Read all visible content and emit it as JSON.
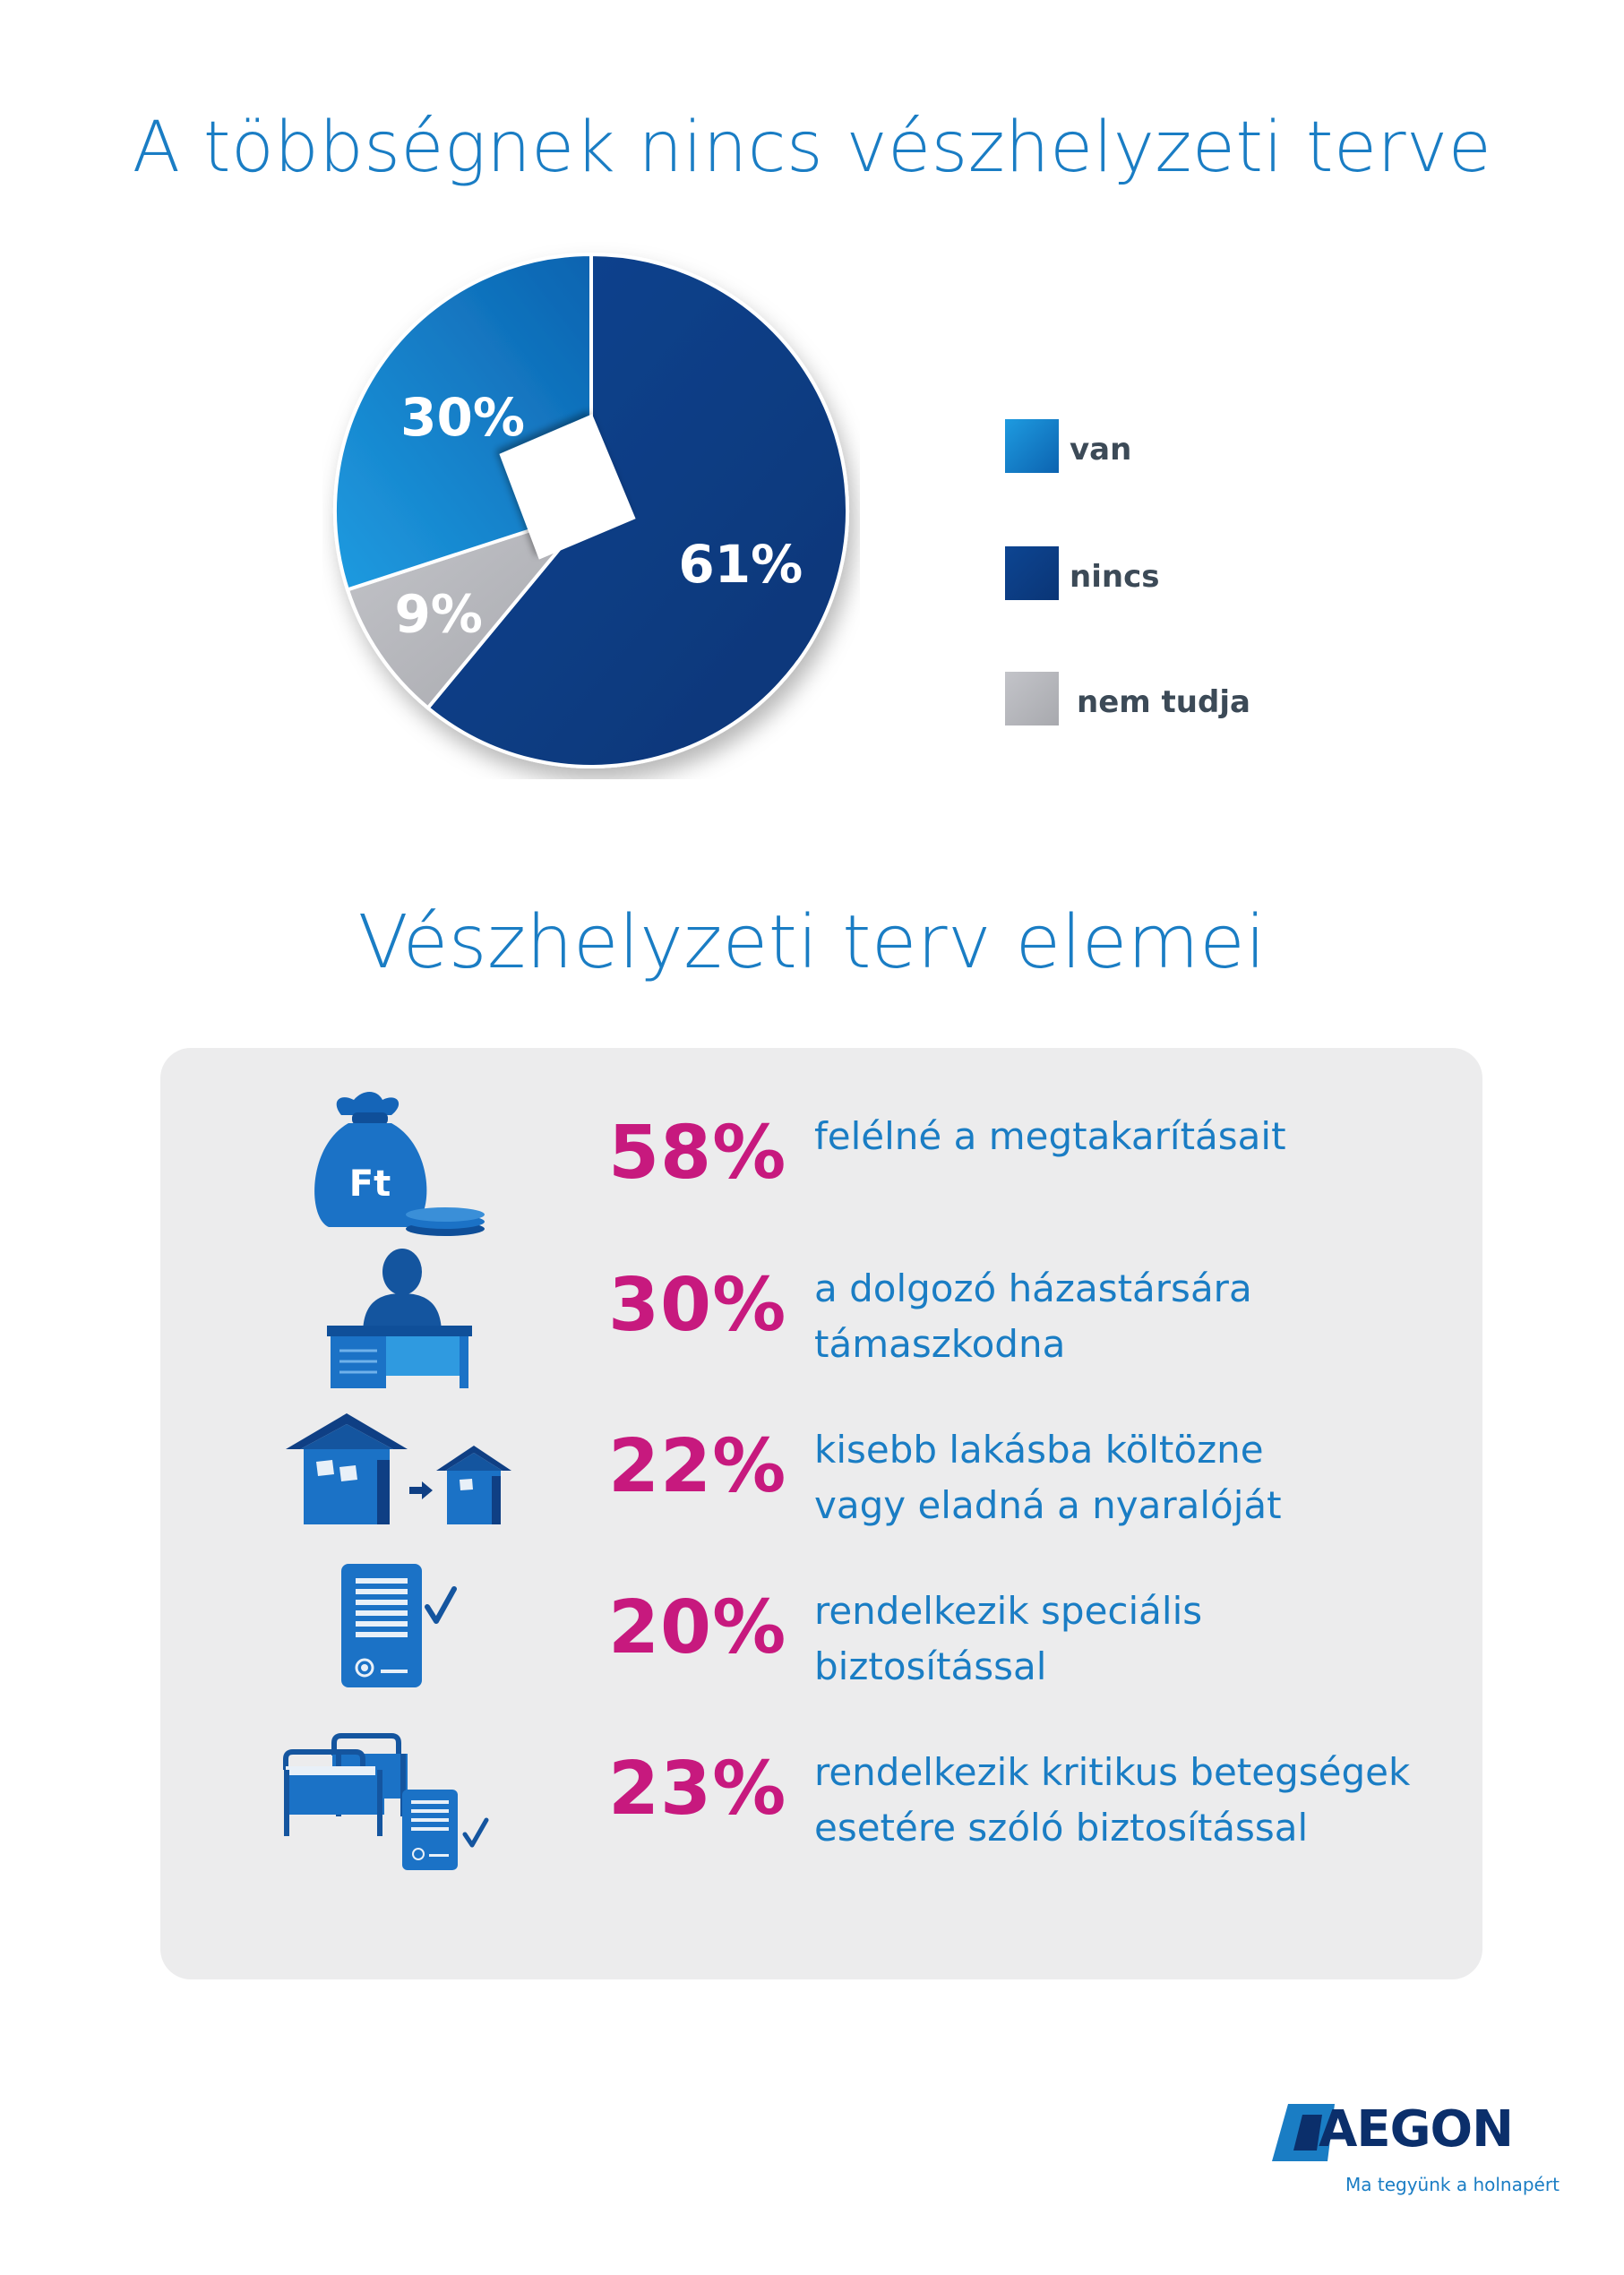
{
  "header": {
    "title": "A többségnek nincs vészhelyzeti terve"
  },
  "chart_data": {
    "type": "pie",
    "title": "A többségnek nincs vészhelyzeti terve",
    "slices": [
      {
        "label": "van",
        "value": 30,
        "display": "30%",
        "color": "#1a78c8"
      },
      {
        "label": "nincs",
        "value": 61,
        "display": "61%",
        "color": "#0c3f86"
      },
      {
        "label": "nem tudja",
        "value": 9,
        "display": "9%",
        "color": "#b9bac0"
      }
    ],
    "legend": {
      "placement": "right",
      "entries": [
        "van",
        "nincs",
        "nem tudja"
      ]
    }
  },
  "section": {
    "title": "Vészhelyzeti terv elemei",
    "items": [
      {
        "percent": "58%",
        "value": 58,
        "lines": [
          "felélné a megtakarításait"
        ],
        "icon": "money-bag-icon"
      },
      {
        "percent": "30%",
        "value": 30,
        "lines": [
          "a dolgozó házastársára",
          "támaszkodna"
        ],
        "icon": "office-worker-icon"
      },
      {
        "percent": "22%",
        "value": 22,
        "lines": [
          "kisebb lakásba költözne",
          "vagy eladná a nyaralóját"
        ],
        "icon": "house-downsize-icon"
      },
      {
        "percent": "20%",
        "value": 20,
        "lines": [
          "rendelkezik speciális",
          "biztosítással"
        ],
        "icon": "insurance-document-icon"
      },
      {
        "percent": "23%",
        "value": 23,
        "lines": [
          "rendelkezik kritikus betegségek",
          "esetére szóló biztosítással"
        ],
        "icon": "hospital-bed-insurance-icon"
      }
    ]
  },
  "icon_text": {
    "currency": "Ft"
  },
  "brand": {
    "name": "AEGON",
    "tagline": "Ma tegyünk a holnapért",
    "colors": {
      "title_blue": "#1a7dc4",
      "dark_blue": "#0b2f6b",
      "accent_magenta": "#c7197e",
      "panel_gray": "#ececed"
    }
  }
}
